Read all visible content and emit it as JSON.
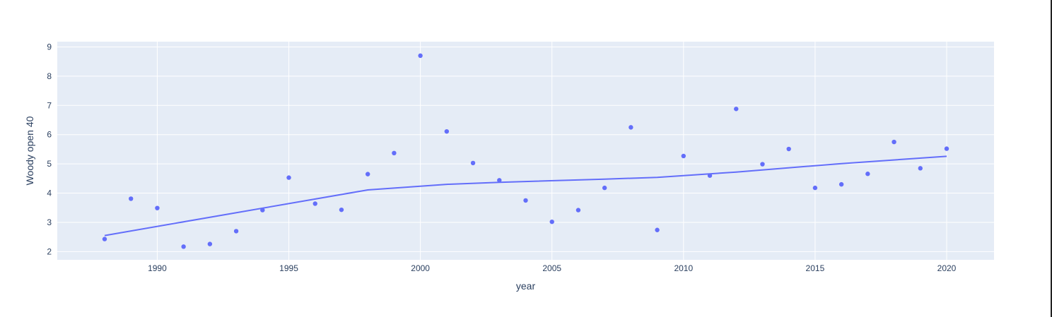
{
  "chart_data": {
    "type": "scatter",
    "title": "",
    "xlabel": "year",
    "ylabel": "Woody open 40",
    "xlim": [
      1986.2,
      2021.8
    ],
    "ylim": [
      1.72,
      9.18
    ],
    "x_ticks": [
      1990,
      1995,
      2000,
      2005,
      2010,
      2015,
      2020
    ],
    "x_tick_labels": [
      "1990",
      "1995",
      "2000",
      "2005",
      "2010",
      "2015",
      "2020"
    ],
    "y_ticks": [
      2,
      3,
      4,
      5,
      6,
      7,
      8,
      9
    ],
    "y_tick_labels": [
      "2",
      "3",
      "4",
      "5",
      "6",
      "7",
      "8",
      "9"
    ],
    "grid": true,
    "legend": "none",
    "colors": {
      "plot_background": "#e5ecf6",
      "grid": "#ffffff",
      "marker": "#636efa",
      "trendline": "#636efa",
      "text": "#2a3f5f"
    },
    "series": [
      {
        "type": "scatter",
        "x": [
          1988,
          1989,
          1990,
          1991,
          1992,
          1993,
          1994,
          1995,
          1996,
          1997,
          1998,
          1999,
          2000,
          2001,
          2002,
          2003,
          2004,
          2005,
          2006,
          2007,
          2008,
          2009,
          2010,
          2011,
          2012,
          2013,
          2014,
          2015,
          2016,
          2017,
          2018,
          2019,
          2020
        ],
        "y": [
          2.43,
          3.81,
          3.49,
          2.17,
          2.26,
          2.7,
          3.42,
          4.53,
          3.64,
          3.43,
          4.65,
          5.37,
          8.7,
          6.11,
          5.03,
          4.44,
          3.75,
          3.02,
          3.42,
          4.18,
          6.25,
          2.74,
          5.27,
          4.6,
          6.88,
          4.99,
          5.51,
          4.18,
          4.3,
          4.66,
          5.75,
          4.85,
          5.52
        ]
      },
      {
        "type": "line",
        "x": [
          1988,
          1998,
          2001,
          2003,
          2007,
          2009,
          2012,
          2016,
          2020
        ],
        "y": [
          2.55,
          4.11,
          4.3,
          4.37,
          4.48,
          4.54,
          4.72,
          5.01,
          5.26
        ]
      }
    ]
  }
}
